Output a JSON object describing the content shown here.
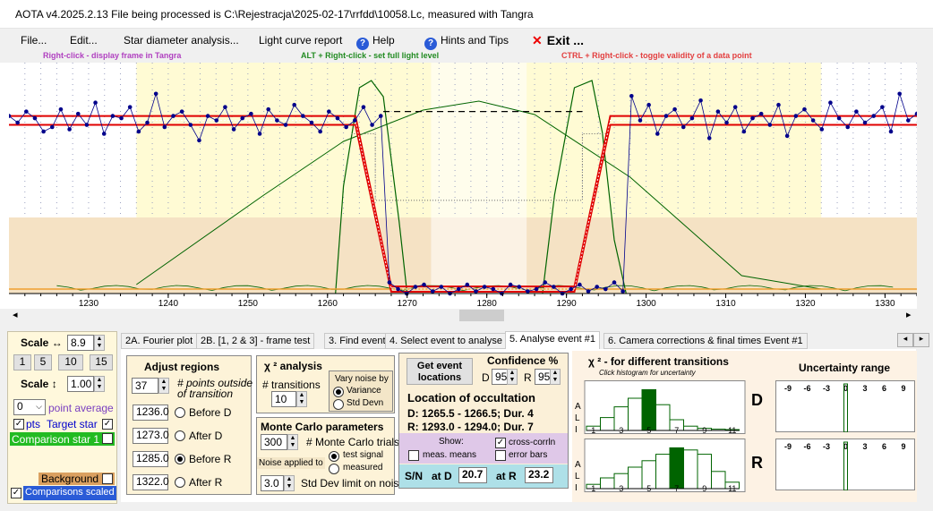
{
  "window": {
    "title": "AOTA v4.2025.2.13    File being processed is C:\\Rejestracja\\2025-02-17\\rrfdd\\10058.Lc, measured with Tangra"
  },
  "menu": {
    "file": "File...",
    "edit": "Edit...",
    "star_diameter": "Star diameter analysis...",
    "light_curve": "Light curve report",
    "help": "Help",
    "hints": "Hints and Tips",
    "exit": "Exit ..."
  },
  "hints": {
    "right_click": "Right-click  -  display frame in Tangra",
    "alt_click": "ALT + Right-click  -  set full light level",
    "ctrl_click": "CTRL + Right-click  -  toggle validity of a data point"
  },
  "chart_data": {
    "type": "line",
    "xlim": [
      1220,
      1334
    ],
    "xticks": [
      1230,
      1240,
      1250,
      1260,
      1270,
      1280,
      1290,
      1300,
      1310,
      1320,
      1330
    ],
    "ylim": [
      0,
      1
    ],
    "full_level": 0.78,
    "event_level": 0.02,
    "d_edge": [
      1263.5,
      1268
    ],
    "r_edge": [
      1291,
      1295.5
    ],
    "colors": {
      "data": "#00008b",
      "fit": "#e00000",
      "chi": "#006400",
      "region_yellow": "#fffbd4",
      "region_tan": "#f5e2c4"
    },
    "points": [
      0.8,
      0.77,
      0.82,
      0.79,
      0.73,
      0.75,
      0.83,
      0.74,
      0.81,
      0.76,
      0.86,
      0.72,
      0.8,
      0.79,
      0.84,
      0.73,
      0.77,
      0.9,
      0.75,
      0.8,
      0.82,
      0.76,
      0.69,
      0.8,
      0.78,
      0.84,
      0.74,
      0.79,
      0.81,
      0.72,
      0.83,
      0.78,
      0.76,
      0.85,
      0.8,
      0.77,
      0.73,
      0.82,
      0.79,
      0.75,
      0.78,
      0.84,
      0.76,
      0.8,
      0.05,
      0.02,
      0.0,
      0.03,
      0.04,
      0.01,
      0.03,
      0.0,
      0.02,
      0.04,
      0.01,
      0.03,
      0.02,
      0.0,
      0.04,
      0.03,
      0.01,
      0.02,
      0.05,
      0.03,
      0.0,
      0.02,
      0.04,
      0.01,
      0.03,
      0.02,
      0.05,
      0.01,
      0.89,
      0.78,
      0.85,
      0.72,
      0.8,
      0.83,
      0.75,
      0.79,
      0.87,
      0.7,
      0.82,
      0.77,
      0.84,
      0.73,
      0.79,
      0.81,
      0.76,
      0.85,
      0.71,
      0.8,
      0.83,
      0.78,
      0.74,
      0.86,
      0.79,
      0.75,
      0.82,
      0.77,
      0.8,
      0.84,
      0.73,
      0.9,
      0.78,
      0.81
    ]
  },
  "tabs": [
    "2A. Fourier plot",
    "2B. [1, 2 & 3] - frame test",
    "3. Find events",
    "4. Select event to analyse",
    "5. Analyse event #1",
    "6. Camera corrections & final times Event #1"
  ],
  "left": {
    "scale_h_label": "Scale ↔",
    "scale_h_value": "8.9",
    "b1": "1",
    "b5": "5",
    "b10": "10",
    "b15": "15",
    "scale_v_label": "Scale ↕",
    "scale_v_value": "1.00",
    "point_avg_value": "0",
    "point_avg_label": "point average",
    "pts_label": "pts",
    "target_star": "Target star",
    "comparison_star": "Comparison star 1",
    "background": "Background",
    "comparisons_scaled": "Comparisons scaled"
  },
  "adjust": {
    "title": "Adjust regions",
    "points_value": "37",
    "points_label": "# points outside",
    "points_label2": "of transition",
    "before_d_value": "1236.0",
    "before_d": "Before D",
    "after_d_value": "1273.0",
    "after_d": "After D",
    "before_r_value": "1285.0",
    "before_r": "Before R",
    "after_r_value": "1322.0",
    "after_r": "After R"
  },
  "chi": {
    "title": "χ ² analysis",
    "transitions_label": "# transitions",
    "transitions_value": "10",
    "vary_label": "Vary noise by",
    "variance": "Variance",
    "stddev": "Std Devn"
  },
  "mc": {
    "title": "Monte Carlo parameters",
    "trials_value": "300",
    "trials_label": "# Monte Carlo trials",
    "noise_label": "Noise applied to",
    "test_signal": "test signal",
    "measured": "measured",
    "std_value": "3.0",
    "std_label": "Std Dev limit on noise"
  },
  "locate": {
    "btn_line1": "Get event",
    "btn_line2": "locations",
    "conf_label": "Confidence %",
    "d_label": "D",
    "d_value": "95",
    "r_label": "R",
    "r_value": "95",
    "title": "Location of occultation",
    "d_line": "D: 1265.5 - 1266.5; Dur. 4",
    "r_line": "R: 1293.0 - 1294.0; Dur. 7",
    "show": "Show:",
    "meas_means": "meas. means",
    "cross_corr": "cross-corrln",
    "error_bars": "error bars",
    "sn": "S/N",
    "at_d": "at D",
    "sn_d": "20.7",
    "at_r": "at R",
    "sn_r": "23.2"
  },
  "hist": {
    "title": "χ ² - for different transitions",
    "subtitle": "Click histogram for uncertainty",
    "axis_labels": [
      "1",
      "3",
      "5",
      "7",
      "9",
      "11"
    ],
    "d_bars": [
      0.1,
      0.3,
      0.55,
      0.75,
      0.95,
      0.6,
      0.25,
      0.1,
      0.05,
      0.03,
      0.02
    ],
    "d_sel": 4,
    "r_bars": [
      0.1,
      0.25,
      0.35,
      0.5,
      0.65,
      0.8,
      0.95,
      0.9,
      0.8,
      0.4,
      0.15
    ],
    "r_sel": 6,
    "ali": [
      "A",
      "L",
      "I"
    ],
    "d_letter": "D",
    "r_letter": "R"
  },
  "unc": {
    "title": "Uncertainty range",
    "labels": [
      "-9",
      "-6",
      "-3",
      "0",
      "3",
      "6",
      "9"
    ]
  }
}
